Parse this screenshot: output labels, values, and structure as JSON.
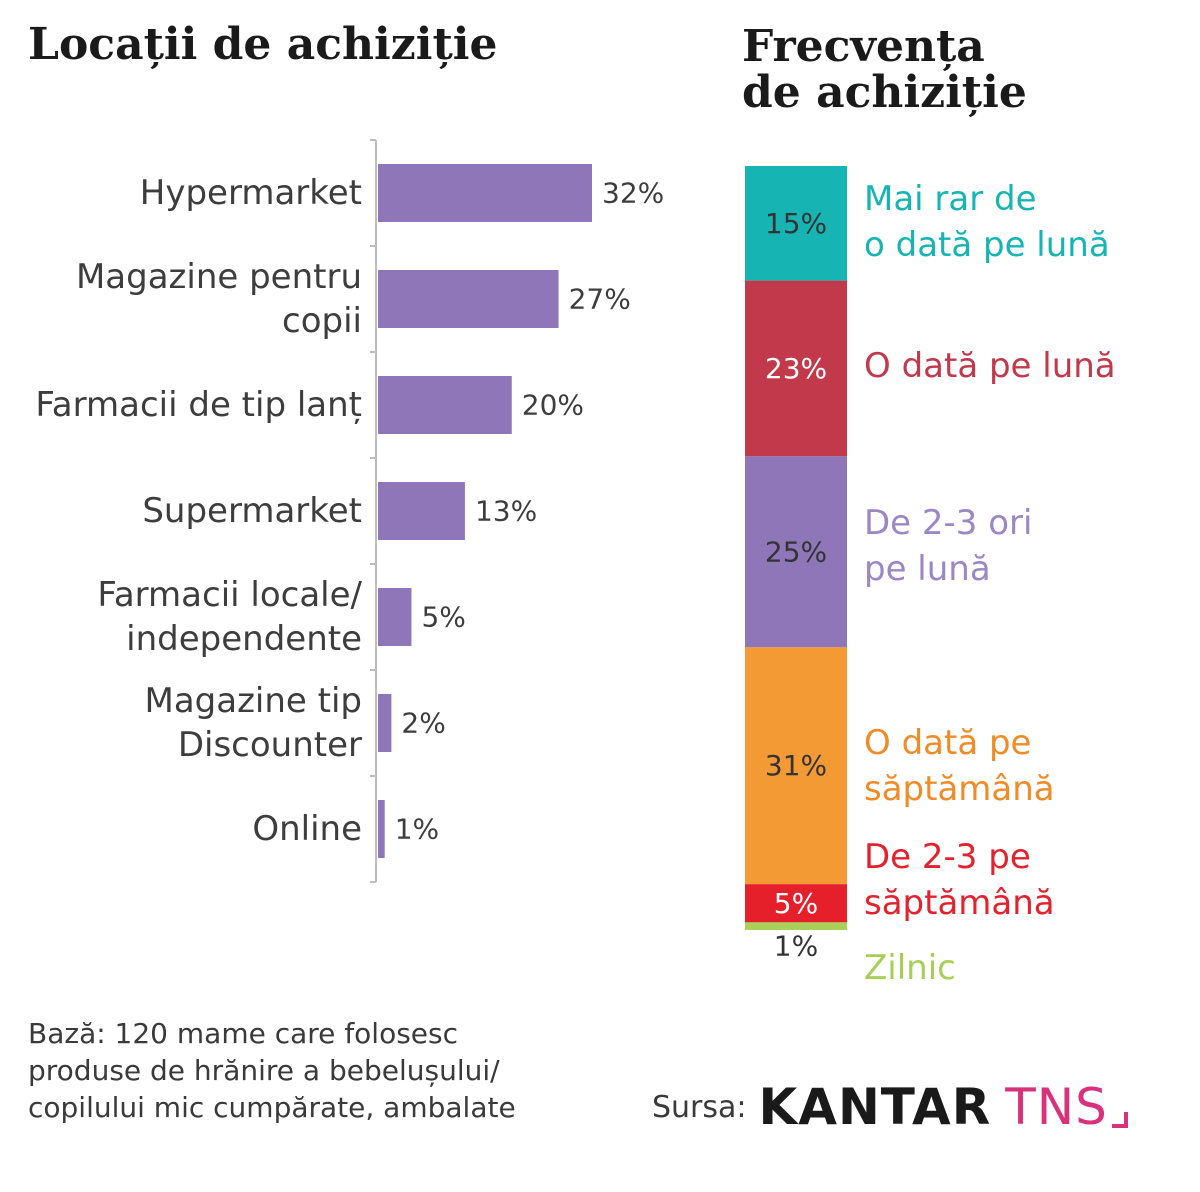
{
  "chart_data": [
    {
      "type": "bar",
      "orientation": "horizontal",
      "title": "Locații de achiziție",
      "categories": [
        [
          "Hypermarket"
        ],
        [
          "Magazine pentru",
          "copii"
        ],
        [
          "Farmacii de tip lanț"
        ],
        [
          "Supermarket"
        ],
        [
          "Farmacii locale/",
          "independente"
        ],
        [
          "Magazine tip",
          "Discounter"
        ],
        [
          "Online"
        ]
      ],
      "values": [
        32,
        27,
        20,
        13,
        5,
        2,
        1
      ],
      "value_labels": [
        "32%",
        "27%",
        "20%",
        "13%",
        "5%",
        "2%",
        "1%"
      ],
      "unit": "%",
      "xlim": [
        0,
        35
      ],
      "grid": false,
      "colors": {
        "bar": "#8e76b9",
        "axis": "#bdbdbd",
        "label": "#3d3d3d"
      }
    },
    {
      "type": "bar",
      "orientation": "stacked-vertical",
      "title": "Frecvența de achiziție",
      "segments": [
        {
          "value": 15,
          "label": "15%",
          "legend": [
            "Mai rar de",
            "o dată pe lună"
          ],
          "color": "#16b5b3",
          "label_color": "#333333",
          "legend_color": "#16b5b3"
        },
        {
          "value": 23,
          "label": "23%",
          "legend": [
            "O dată pe lună"
          ],
          "color": "#c1394b",
          "label_color": "#ffffff",
          "legend_color": "#c1394b"
        },
        {
          "value": 25,
          "label": "25%",
          "legend": [
            "De 2-3 ori",
            "pe lună"
          ],
          "color": "#8e76b9",
          "label_color": "#333333",
          "legend_color": "#9b87c6"
        },
        {
          "value": 31,
          "label": "31%",
          "legend": [
            "O dată pe",
            "săptămână"
          ],
          "color": "#f39a35",
          "label_color": "#333333",
          "legend_color": "#f08c28"
        },
        {
          "value": 5,
          "label": "5%",
          "legend": [
            "De 2-3 pe",
            "săptămână"
          ],
          "color": "#e5202a",
          "label_color": "#ffffff",
          "legend_color": "#e3222e"
        },
        {
          "value": 1,
          "label": "1%",
          "legend": [
            "Zilnic"
          ],
          "color": "#a9d15a",
          "label_color": "#333333",
          "legend_color": "#a8cf55"
        }
      ],
      "ylim": [
        0,
        100
      ],
      "unit": "%"
    }
  ],
  "footnote": [
    "Bază: 120 mame care folosesc",
    "produse de hrănire a bebelușului/",
    "copilului mic cumpărate, ambalate"
  ],
  "source": {
    "label": "Sursa:",
    "brand": "KANTAR",
    "brand_sub": "TNS"
  }
}
